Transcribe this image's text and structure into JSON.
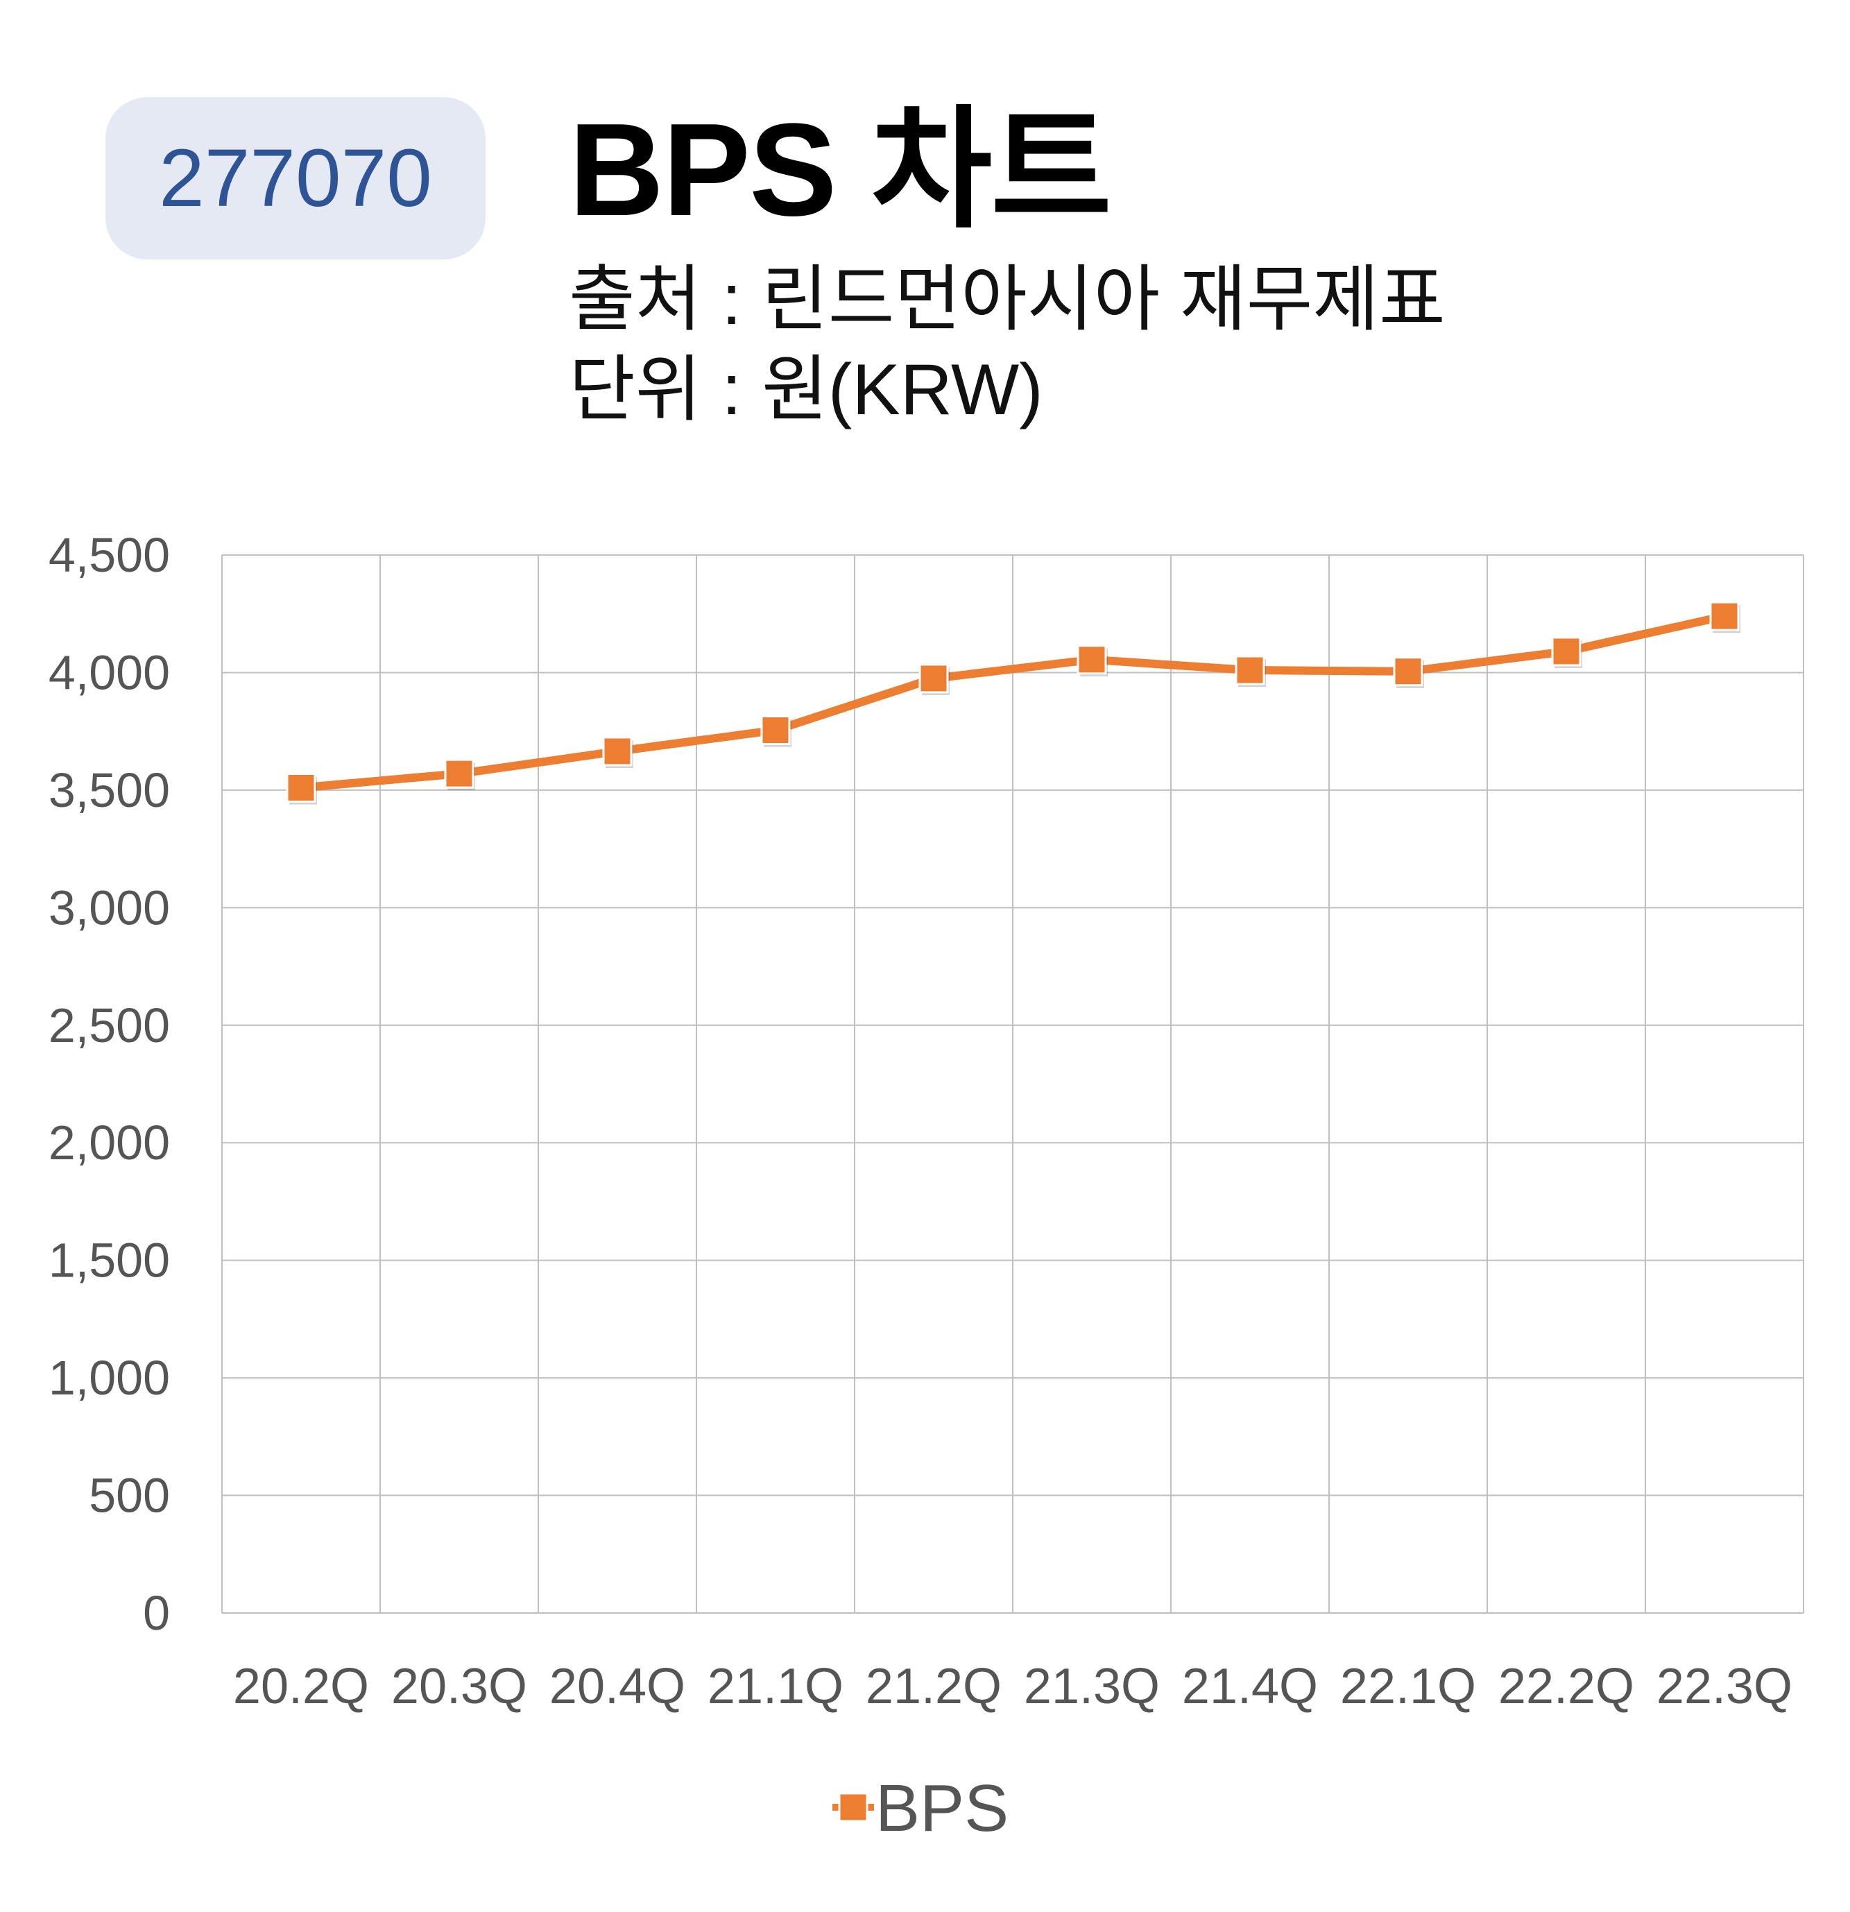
{
  "header": {
    "code": "277070",
    "title": "BPS 차트",
    "source": "출처 : 린드먼아시아 재무제표",
    "unit": "단위 : 원(KRW)"
  },
  "colors": {
    "badge_bg": "#e4e9f4",
    "badge_text": "#2f5496",
    "series": "#ed7d31",
    "grid": "#bfbfbf"
  },
  "chart_data": {
    "type": "line",
    "categories": [
      "20.2Q",
      "20.3Q",
      "20.4Q",
      "21.1Q",
      "21.2Q",
      "21.3Q",
      "21.4Q",
      "22.1Q",
      "22.2Q",
      "22.3Q"
    ],
    "series": [
      {
        "name": "BPS",
        "values": [
          3510,
          3570,
          3665,
          3755,
          3975,
          4055,
          4010,
          4005,
          4090,
          4240
        ]
      }
    ],
    "ylim": [
      0,
      4500
    ],
    "yticks": [
      0,
      500,
      1000,
      1500,
      2000,
      2500,
      3000,
      3500,
      4000,
      4500
    ],
    "ytick_labels": [
      "0",
      "500",
      "1,000",
      "1,500",
      "2,000",
      "2,500",
      "3,000",
      "3,500",
      "4,000",
      "4,500"
    ],
    "grid": true,
    "legend": "bottom",
    "marker": "square"
  }
}
